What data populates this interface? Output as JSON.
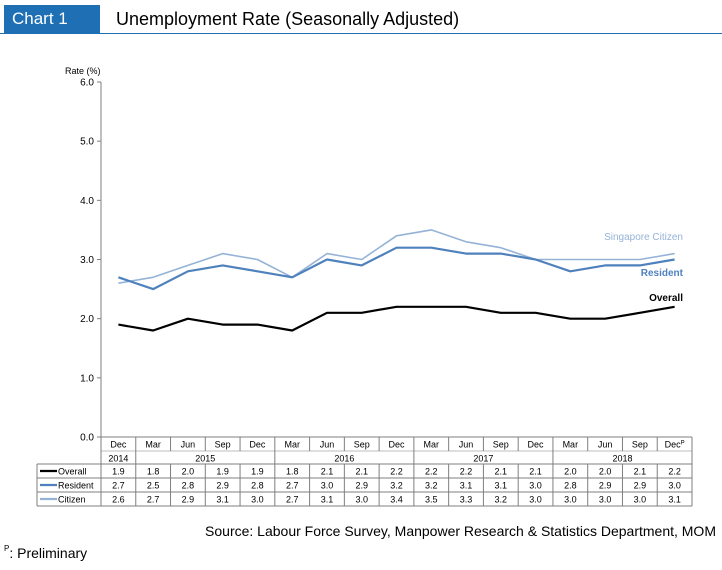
{
  "header": {
    "chart_label": "Chart 1",
    "title": "Unemployment Rate (Seasonally Adjusted)"
  },
  "colors": {
    "brand": "#1f6fb5",
    "overall": "#000000",
    "resident": "#4f81bd",
    "citizen": "#95b3d7"
  },
  "chart_data": {
    "type": "line",
    "title": "Unemployment Rate (Seasonally Adjusted)",
    "ylabel": "Rate (%)",
    "ylim": [
      0,
      6
    ],
    "yticks": [
      "0.0",
      "1.0",
      "2.0",
      "3.0",
      "4.0",
      "5.0",
      "6.0"
    ],
    "grid": false,
    "categories": [
      "Dec",
      "Mar",
      "Jun",
      "Sep",
      "Dec",
      "Mar",
      "Jun",
      "Sep",
      "Dec",
      "Mar",
      "Jun",
      "Sep",
      "Dec",
      "Mar",
      "Jun",
      "Sep",
      "Dec"
    ],
    "last_category_superscript": "P",
    "years": [
      {
        "label": "2014",
        "span": 1
      },
      {
        "label": "2015",
        "span": 4
      },
      {
        "label": "2016",
        "span": 4
      },
      {
        "label": "2017",
        "span": 4
      },
      {
        "label": "2018",
        "span": 4
      }
    ],
    "series": [
      {
        "name": "Overall",
        "chart_label": "Overall",
        "color": "#000000",
        "values": [
          1.9,
          1.8,
          2.0,
          1.9,
          1.9,
          1.8,
          2.1,
          2.1,
          2.2,
          2.2,
          2.2,
          2.1,
          2.1,
          2.0,
          2.0,
          2.1,
          2.2
        ],
        "table_values": [
          "1.9",
          "1.8",
          "2.0",
          "1.9",
          "1.9",
          "1.8",
          "2.1",
          "2.1",
          "2.2",
          "2.2",
          "2.2",
          "2.1",
          "2.1",
          "2.0",
          "2.0",
          "2.1",
          "2.2"
        ]
      },
      {
        "name": "Resident",
        "chart_label": "Resident",
        "color": "#4f81bd",
        "values": [
          2.7,
          2.5,
          2.8,
          2.9,
          2.8,
          2.7,
          3.0,
          2.9,
          3.2,
          3.2,
          3.1,
          3.1,
          3.0,
          2.8,
          2.9,
          2.9,
          3.0
        ],
        "table_values": [
          "2.7",
          "2.5",
          "2.8",
          "2.9",
          "2.8",
          "2.7",
          "3.0",
          "2.9",
          "3.2",
          "3.2",
          "3.1",
          "3.1",
          "3.0",
          "2.8",
          "2.9",
          "2.9",
          "3.0"
        ]
      },
      {
        "name": "Citizen",
        "chart_label": "Singapore Citizen",
        "color": "#95b3d7",
        "values": [
          2.6,
          2.7,
          2.9,
          3.1,
          3.0,
          2.7,
          3.1,
          3.0,
          3.4,
          3.5,
          3.3,
          3.2,
          3.0,
          3.0,
          3.0,
          3.0,
          3.1
        ],
        "table_values": [
          "2.6",
          "2.7",
          "2.9",
          "3.1",
          "3.0",
          "2.7",
          "3.1",
          "3.0",
          "3.4",
          "3.5",
          "3.3",
          "3.2",
          "3.0",
          "3.0",
          "3.0",
          "3.0",
          "3.1"
        ]
      }
    ]
  },
  "source": "Source: Labour Force Survey, Manpower Research & Statistics Department, MOM",
  "footnote": {
    "marker": "P",
    "text": ": Preliminary"
  }
}
